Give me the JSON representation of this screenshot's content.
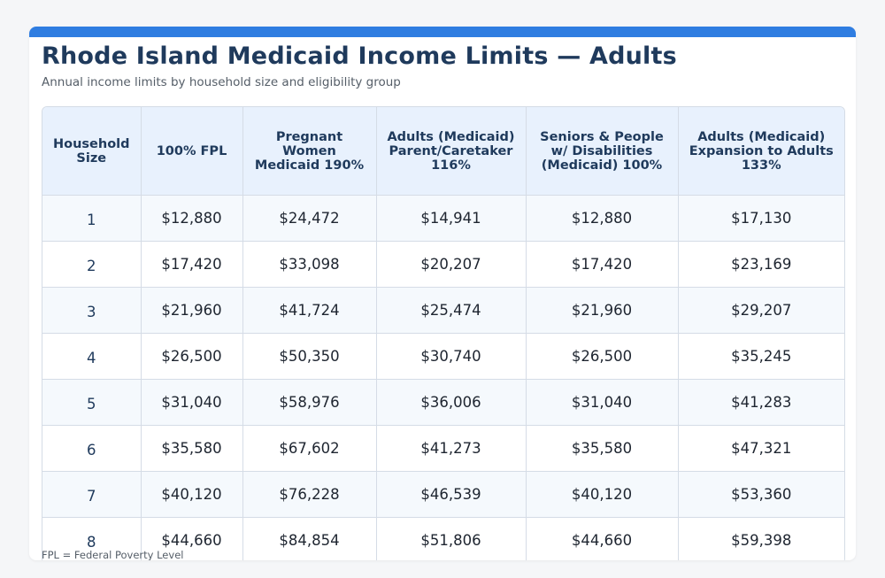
{
  "title": "Rhode Island Medicaid Income Limits — Adults",
  "subtitle": "Annual income limits by household size and eligibility group",
  "columns": [
    "Household Size",
    "100% FPL",
    "Pregnant Women Medicaid 190%",
    "Adults (Medicaid) Parent/Caretaker 116%",
    "Seniors & People w/ Disabilities (Medicaid) 100%",
    "Adults (Medicaid) Expansion to Adults 133%"
  ],
  "rows": [
    [
      "1",
      "$12,880",
      "$24,472",
      "$14,941",
      "$12,880",
      "$17,130"
    ],
    [
      "2",
      "$17,420",
      "$33,098",
      "$20,207",
      "$17,420",
      "$23,169"
    ],
    [
      "3",
      "$21,960",
      "$41,724",
      "$25,474",
      "$21,960",
      "$29,207"
    ],
    [
      "4",
      "$26,500",
      "$50,350",
      "$30,740",
      "$26,500",
      "$35,245"
    ],
    [
      "5",
      "$31,040",
      "$58,976",
      "$36,006",
      "$31,040",
      "$41,283"
    ],
    [
      "6",
      "$35,580",
      "$67,602",
      "$41,273",
      "$35,580",
      "$47,321"
    ],
    [
      "7",
      "$40,120",
      "$76,228",
      "$46,539",
      "$40,120",
      "$53,360"
    ],
    [
      "8",
      "$44,660",
      "$84,854",
      "$51,806",
      "$44,660",
      "$59,398"
    ]
  ],
  "footnote": "FPL = Federal Poverty Level",
  "colors": {
    "accent": "#2f7de1",
    "title": "#1f3a5c",
    "header_bg": "#e8f1fd"
  }
}
